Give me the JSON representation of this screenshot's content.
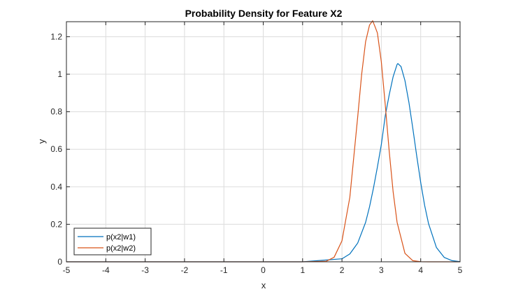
{
  "chart_data": {
    "type": "line",
    "title": "Probability Density for Feature X2",
    "xlabel": "x",
    "ylabel": "y",
    "xlim": [
      -5,
      5
    ],
    "ylim": [
      0,
      1.28
    ],
    "xticks": [
      -5,
      -4,
      -3,
      -2,
      -1,
      0,
      1,
      2,
      3,
      4,
      5
    ],
    "xtick_labels": [
      "-5",
      "-4",
      "-3",
      "-2",
      "-1",
      "0",
      "1",
      "2",
      "3",
      "4",
      "5"
    ],
    "yticks": [
      0,
      0.2,
      0.4,
      0.6,
      0.8,
      1,
      1.2
    ],
    "ytick_labels": [
      "0",
      "0.2",
      "0.4",
      "0.6",
      "0.8",
      "1",
      "1.2"
    ],
    "grid": true,
    "legend_position": "bottom-left",
    "series": [
      {
        "name": "p(x2|w1)",
        "color": "#0072BD",
        "x": [
          -5,
          -4,
          -3,
          -2,
          -1,
          0,
          1,
          2,
          2.2,
          2.4,
          2.6,
          2.7,
          2.8,
          2.9,
          3.0,
          3.1,
          3.2,
          3.3,
          3.4,
          3.42,
          3.5,
          3.6,
          3.7,
          3.8,
          3.9,
          4.0,
          4.1,
          4.2,
          4.4,
          4.6,
          4.8,
          5
        ],
        "y": [
          0,
          0,
          0,
          0,
          0,
          0,
          0,
          0.016,
          0.042,
          0.1,
          0.21,
          0.293,
          0.393,
          0.505,
          0.625,
          0.779,
          0.89,
          0.987,
          1.052,
          1.057,
          1.041,
          0.966,
          0.851,
          0.711,
          0.563,
          0.423,
          0.301,
          0.203,
          0.076,
          0.023,
          0.006,
          0.001
        ]
      },
      {
        "name": "p(x2|w2)",
        "color": "#D95319",
        "x": [
          -5,
          -4,
          -3,
          -2,
          -1,
          0,
          1,
          1.6,
          1.8,
          2.0,
          2.2,
          2.4,
          2.5,
          2.6,
          2.7,
          2.78,
          2.85,
          2.9,
          3.0,
          3.1,
          3.2,
          3.3,
          3.4,
          3.6,
          3.8,
          4.0,
          4.2,
          4.5,
          5
        ],
        "y": [
          0,
          0,
          0,
          0,
          0,
          0,
          0,
          0.003,
          0.024,
          0.112,
          0.344,
          0.773,
          0.999,
          1.173,
          1.262,
          1.285,
          1.248,
          1.22,
          1.066,
          0.836,
          0.59,
          0.373,
          0.211,
          0.045,
          0.006,
          0.0006,
          0,
          0,
          0
        ]
      }
    ]
  }
}
